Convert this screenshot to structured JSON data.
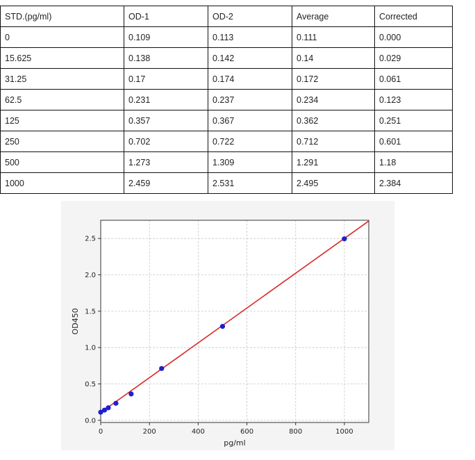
{
  "table": {
    "headers": [
      "STD.(pg/ml)",
      "OD-1",
      "OD-2",
      "Average",
      "Corrected"
    ],
    "rows": [
      [
        "0",
        "0.109",
        "0.113",
        "0.111",
        "0.000"
      ],
      [
        "15.625",
        "0.138",
        "0.142",
        "0.14",
        "0.029"
      ],
      [
        "31.25",
        "0.17",
        "0.174",
        "0.172",
        "0.061"
      ],
      [
        "62.5",
        "0.231",
        "0.237",
        "0.234",
        "0.123"
      ],
      [
        "125",
        "0.357",
        "0.367",
        "0.362",
        "0.251"
      ],
      [
        "250",
        "0.702",
        "0.722",
        "0.712",
        "0.601"
      ],
      [
        "500",
        "1.273",
        "1.309",
        "1.291",
        "1.18"
      ],
      [
        "1000",
        "2.459",
        "2.531",
        "2.495",
        "2.384"
      ]
    ]
  },
  "chart_data": {
    "type": "scatter",
    "xlabel": "pg/ml",
    "ylabel": "OD450",
    "xlim": [
      0,
      1100
    ],
    "ylim": [
      -0.03,
      2.75
    ],
    "xticks": [
      0,
      200,
      400,
      600,
      800,
      1000
    ],
    "yticks": [
      0.0,
      0.5,
      1.0,
      1.5,
      2.0,
      2.5
    ],
    "xtick_labels": [
      "0",
      "200",
      "400",
      "600",
      "800",
      "1000"
    ],
    "ytick_labels": [
      "0.0",
      "0.5",
      "1.0",
      "1.5",
      "2.0",
      "2.5"
    ],
    "grid": true,
    "points": {
      "x": [
        0,
        15.625,
        31.25,
        62.5,
        125,
        250,
        500,
        1000
      ],
      "y": [
        0.111,
        0.14,
        0.172,
        0.234,
        0.362,
        0.712,
        1.291,
        2.495
      ]
    },
    "fit_line": {
      "x": [
        0,
        1100
      ],
      "y": [
        0.107,
        2.74
      ]
    },
    "colors": {
      "points": "#1f1fd0",
      "fit": "#d62728"
    }
  }
}
